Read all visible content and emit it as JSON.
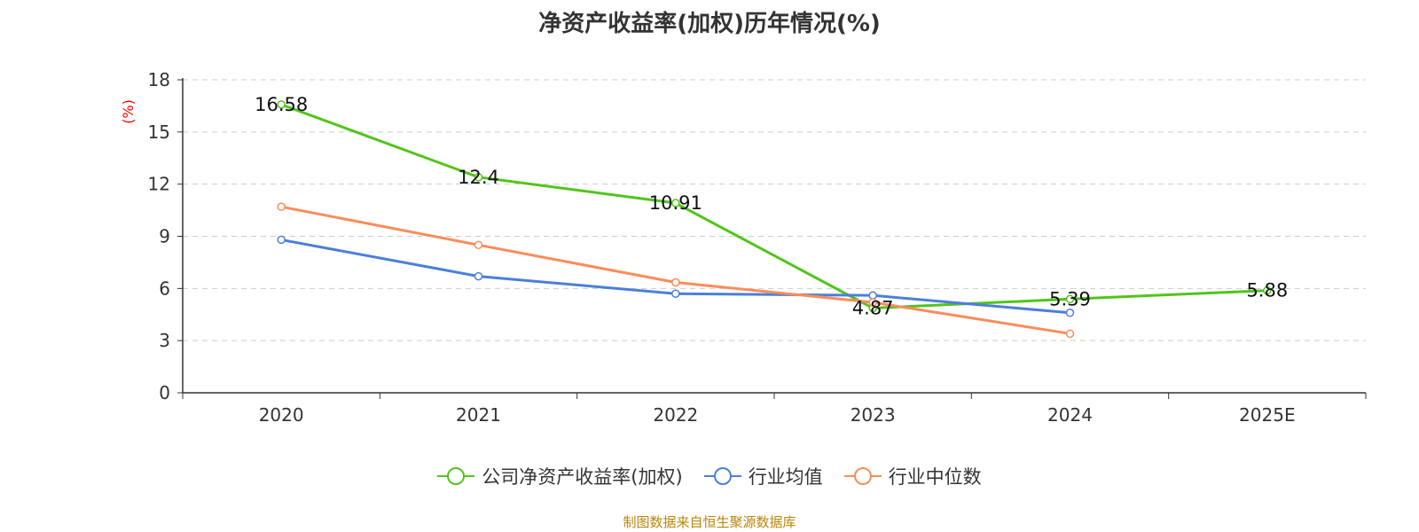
{
  "chart_data": {
    "type": "line",
    "title": "净资产收益率(加权)历年情况(%)",
    "xlabel": "",
    "ylabel": "(%)",
    "categories": [
      "2020",
      "2021",
      "2022",
      "2023",
      "2024",
      "2025E"
    ],
    "ylim": [
      0,
      18
    ],
    "yticks": [
      0,
      3,
      6,
      9,
      12,
      15,
      18
    ],
    "grid": true,
    "legend_position": "bottom",
    "series": [
      {
        "name": "公司净资产收益率(加权)",
        "color": "#52c41a",
        "values": [
          16.58,
          12.4,
          10.91,
          4.87,
          5.39,
          5.88
        ],
        "labels": [
          "16.58",
          "12.4",
          "10.91",
          "4.87",
          "5.39",
          "5.88"
        ],
        "show_labels": true,
        "marker": "circle"
      },
      {
        "name": "行业均值",
        "color": "#4a7fdc",
        "values": [
          8.8,
          6.7,
          5.7,
          5.6,
          4.6,
          null
        ],
        "show_labels": false,
        "marker": "circle"
      },
      {
        "name": "行业中位数",
        "color": "#fa8c5a",
        "values": [
          10.7,
          8.5,
          6.35,
          5.2,
          3.4,
          null
        ],
        "show_labels": false,
        "marker": "circle"
      }
    ],
    "ylabel_color": "#ff0000"
  },
  "source": "制图数据来自恒生聚源数据库"
}
